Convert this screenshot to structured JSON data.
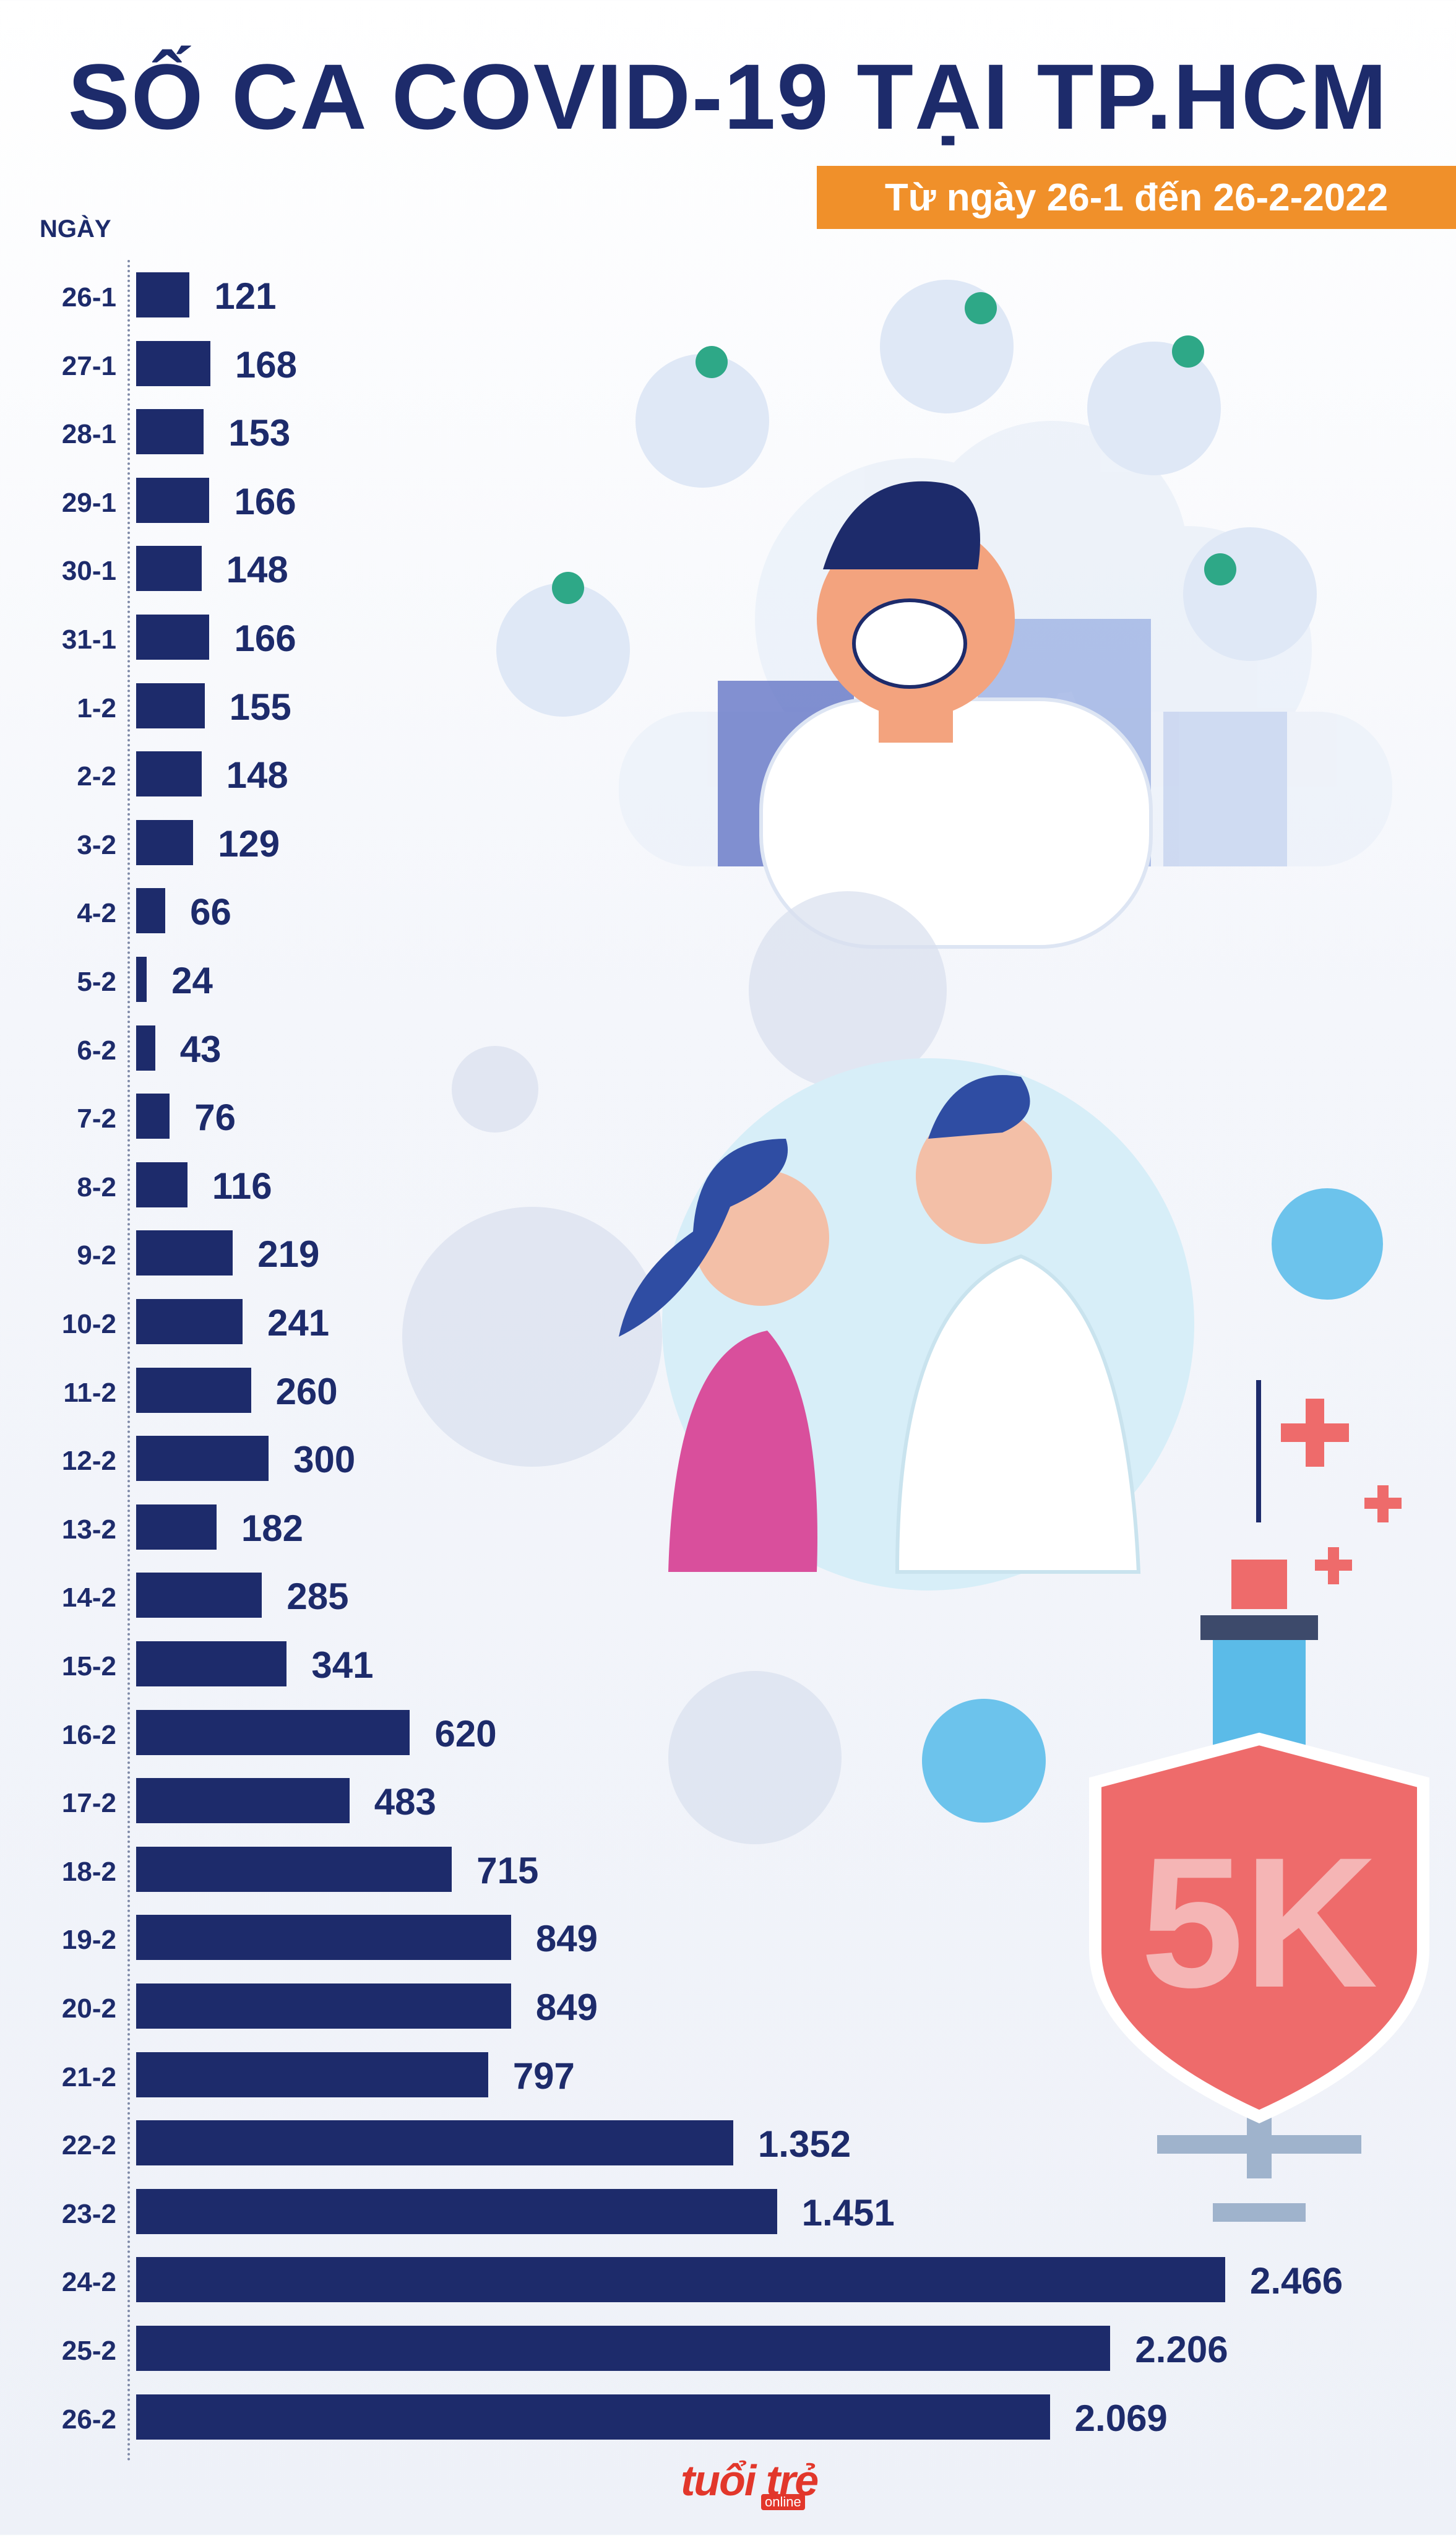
{
  "header": {
    "title": "SỐ CA COVID-19 TẠI TP.HCM",
    "subtitle": "Từ ngày 26-1 đến 26-2-2022"
  },
  "axis_label": "NGÀY",
  "logo": {
    "text": "tuổi trẻ",
    "sub": "online"
  },
  "colors": {
    "bar": "#1d2b6b",
    "title": "#1d2b6b",
    "subtitle_bg": "#f0902a",
    "accent_blue": "#5bbbe8",
    "shield_red": "#ee6b6b"
  },
  "chart_data": {
    "type": "bar",
    "orientation": "horizontal",
    "title": "SỐ CA COVID-19 TẠI TP.HCM",
    "subtitle": "Từ ngày 26-1 đến 26-2-2022",
    "ylabel": "NGÀY",
    "xlim": [
      0,
      2466
    ],
    "grid": false,
    "categories": [
      "26-1",
      "27-1",
      "28-1",
      "29-1",
      "30-1",
      "31-1",
      "1-2",
      "2-2",
      "3-2",
      "4-2",
      "5-2",
      "6-2",
      "7-2",
      "8-2",
      "9-2",
      "10-2",
      "11-2",
      "12-2",
      "13-2",
      "14-2",
      "15-2",
      "16-2",
      "17-2",
      "18-2",
      "19-2",
      "20-2",
      "21-2",
      "22-2",
      "23-2",
      "24-2",
      "25-2",
      "26-2"
    ],
    "values": [
      121,
      168,
      153,
      166,
      148,
      166,
      155,
      148,
      129,
      66,
      24,
      43,
      76,
      116,
      219,
      241,
      260,
      300,
      182,
      285,
      341,
      620,
      483,
      715,
      849,
      849,
      797,
      1352,
      1451,
      2466,
      2206,
      2069
    ],
    "value_labels": [
      "121",
      "168",
      "153",
      "166",
      "148",
      "166",
      "155",
      "148",
      "129",
      "66",
      "24",
      "43",
      "76",
      "116",
      "219",
      "241",
      "260",
      "300",
      "182",
      "285",
      "341",
      "620",
      "483",
      "715",
      "849",
      "849",
      "797",
      "1.352",
      "1.451",
      "2.466",
      "2.206",
      "2.069"
    ]
  }
}
